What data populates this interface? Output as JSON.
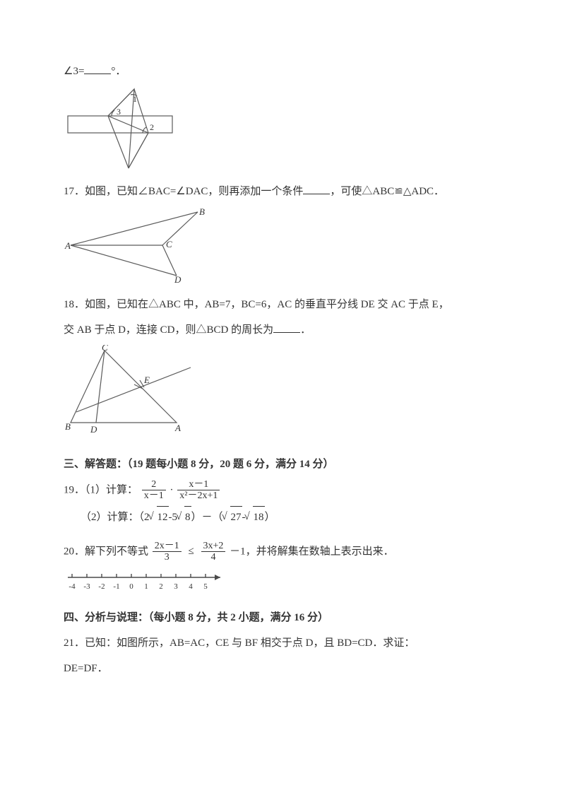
{
  "q16": {
    "prefix": "∠3=",
    "suffix": "°．"
  },
  "fig16": {
    "labels": {
      "one": "1",
      "two": "2",
      "three": "3"
    },
    "stroke": "#5a5a5a",
    "fill": "#ffffff"
  },
  "q17": {
    "text_a": "17．如图，已知∠BAC=∠DAC，则再添加一个条件",
    "text_b": "，可使△ABC≌△ADC．"
  },
  "fig17": {
    "labels": {
      "A": "A",
      "B": "B",
      "C": "C",
      "D": "D"
    },
    "stroke": "#5a5a5a"
  },
  "q18": {
    "line1": "18．如图，已知在△ABC 中，AB=7，BC=6，AC 的垂直平分线 DE 交 AC 于点 E，",
    "line2_a": "交 AB 于点 D，连接 CD，则△BCD 的周长为",
    "line2_b": "．"
  },
  "fig18": {
    "labels": {
      "A": "A",
      "B": "B",
      "C": "C",
      "D": "D",
      "E": "E"
    },
    "stroke": "#5a5a5a"
  },
  "section3": "三、解答题：（19 题每小题 8 分，20 题 6 分，满分 14 分）",
  "q19": {
    "part1_label": "19．（1）计算：",
    "frac1_num": "2",
    "frac1_den": "x－1",
    "frac2_num": "x－1",
    "frac2_den": "x²－2x+1",
    "dot": "·",
    "part2_label": "（2）计算：（2",
    "r12": "12",
    "minus5": "-5",
    "r8": "8",
    "paren_mid": "）－（",
    "r27": "27",
    "minus": "-",
    "r18": "18",
    "paren_end": "）"
  },
  "q20": {
    "prefix": "20．解下列不等式",
    "frac3_num": "2x－1",
    "frac3_den": "3",
    "le": "≤",
    "frac4_num": "3x+2",
    "frac4_den": "4",
    "suffix": "－1，并将解集在数轴上表示出来．"
  },
  "numberline": {
    "ticks": [
      "-4",
      "-3",
      "-2",
      "-1",
      "0",
      "1",
      "2",
      "3",
      "4",
      "5"
    ],
    "stroke": "#4a4a4a"
  },
  "section4": "四、分析与说理：（每小题 8 分，共 2 小题，满分 16 分）",
  "q21": {
    "line1": "21．已知：如图所示，AB=AC，CE 与 BF 相交于点 D，且 BD=CD．求证：",
    "line2": "DE=DF．"
  }
}
